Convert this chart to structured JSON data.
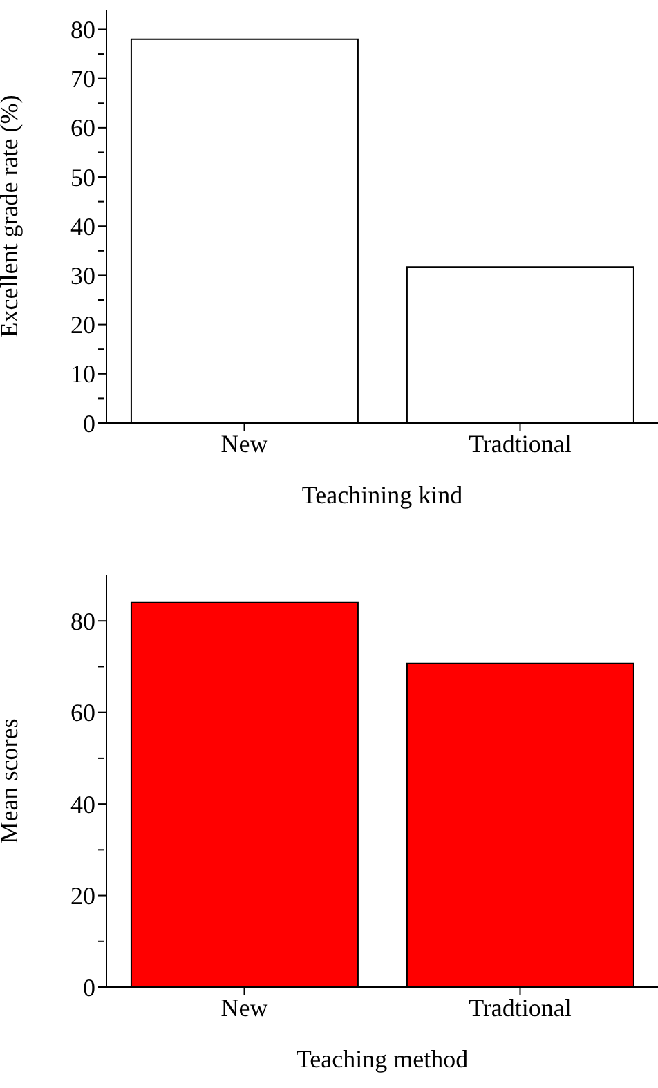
{
  "chart_data": [
    {
      "type": "bar",
      "categories": [
        "New",
        "Tradtional"
      ],
      "values": [
        78,
        31.7
      ],
      "color": "#ffffff",
      "xlabel": "Teachining kind",
      "ylabel": "Excellent grade rate (%)",
      "ylim": [
        0,
        84
      ],
      "yticks": [
        0,
        {
          "value": 5,
          "label": null
        },
        10,
        {
          "value": 15,
          "label": null
        },
        20,
        {
          "value": 25,
          "label": null
        },
        30,
        {
          "value": 35,
          "label": null
        },
        40,
        {
          "value": 45,
          "label": null
        },
        50,
        {
          "value": 55,
          "label": null
        },
        60,
        {
          "value": 65,
          "label": null
        },
        70,
        {
          "value": 75,
          "label": null
        },
        80
      ]
    },
    {
      "type": "bar",
      "categories": [
        "New",
        "Tradtional"
      ],
      "values": [
        84,
        70.7
      ],
      "color": "#ff0000",
      "xlabel": "Teaching method",
      "ylabel": "Mean scores",
      "ylim": [
        0,
        90
      ],
      "yticks": [
        0,
        {
          "value": 10,
          "label": null
        },
        20,
        {
          "value": 30,
          "label": null
        },
        40,
        {
          "value": 50,
          "label": null
        },
        60,
        {
          "value": 70,
          "label": null
        },
        80
      ]
    }
  ]
}
